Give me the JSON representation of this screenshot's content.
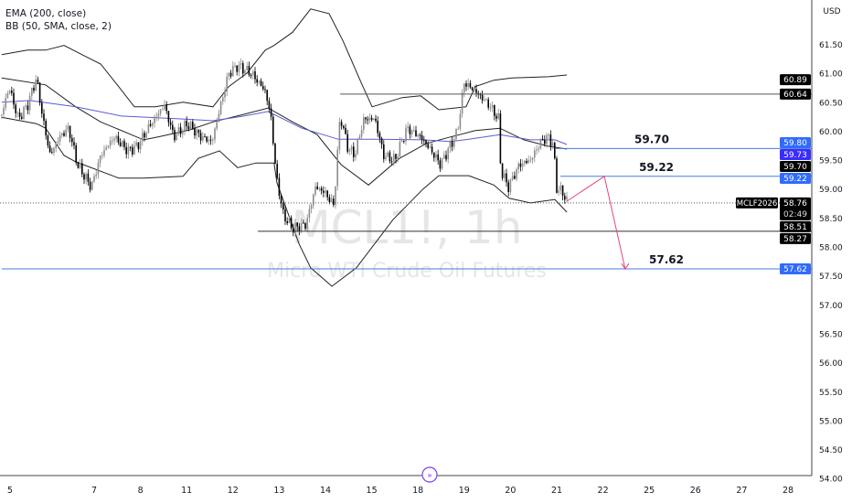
{
  "legend": {
    "ema": "EMA (200, close)",
    "bb": "BB (50, SMA, close, 2)"
  },
  "currency": "USD",
  "watermark": {
    "symbol": "MCL1!, 1h",
    "name": "Micro WTI Crude Oil Futures"
  },
  "scroll_button_icon": "scroll-to-realtime-icon",
  "chart_data": {
    "type": "candlestick",
    "symbol": "MCL1!",
    "interval": "1h",
    "x_ticks": [
      {
        "label": "5",
        "pos": 0.18
      },
      {
        "label": "7",
        "pos": 2
      },
      {
        "label": "8",
        "pos": 3
      },
      {
        "label": "11",
        "pos": 4
      },
      {
        "label": "12",
        "pos": 5
      },
      {
        "label": "13",
        "pos": 6
      },
      {
        "label": "14",
        "pos": 7
      },
      {
        "label": "15",
        "pos": 8
      },
      {
        "label": "18",
        "pos": 9
      },
      {
        "label": "19",
        "pos": 10
      },
      {
        "label": "20",
        "pos": 11
      },
      {
        "label": "21",
        "pos": 12
      },
      {
        "label": "22",
        "pos": 13
      },
      {
        "label": "25",
        "pos": 14
      },
      {
        "label": "26",
        "pos": 15
      },
      {
        "label": "27",
        "pos": 16
      },
      {
        "label": "28",
        "pos": 17
      }
    ],
    "y_ticks": [
      "61.50",
      "61.00",
      "60.50",
      "60.00",
      "59.50",
      "59.00",
      "58.50",
      "58.00",
      "57.50",
      "57.00",
      "56.50",
      "56.00",
      "55.50",
      "55.00",
      "54.50",
      "54.00"
    ],
    "ylim": [
      53.95,
      62.35
    ],
    "close_path": {
      "x": [
        0,
        0.16,
        0.36,
        0.56,
        0.75,
        0.91,
        1.05,
        1.25,
        1.45,
        1.64,
        1.94,
        2.14,
        2.43,
        2.73,
        2.93,
        3.23,
        3.52,
        3.72,
        4.02,
        4.31,
        4.55,
        4.71,
        4.91,
        5.1,
        5.4,
        5.7,
        5.83,
        5.93,
        6.09,
        6.29,
        6.58,
        6.78,
        6.98,
        7.18,
        7.32,
        7.47,
        7.63,
        7.83,
        8.07,
        8.26,
        8.5,
        8.76,
        9.06,
        9.29,
        9.49,
        9.69,
        9.85,
        10.0,
        10.24,
        10.54,
        10.74,
        10.79,
        10.95,
        11.19,
        11.43,
        11.66,
        11.82,
        11.94,
        11.98,
        12.12,
        12.22
      ],
      "close": [
        60.29,
        60.76,
        60.21,
        60.45,
        60.92,
        60.13,
        59.58,
        59.9,
        60.05,
        59.42,
        59.03,
        59.58,
        59.9,
        59.66,
        59.74,
        60.13,
        60.45,
        59.9,
        60.13,
        59.9,
        59.82,
        60.37,
        61.0,
        61.13,
        61.0,
        60.69,
        60.21,
        59.26,
        58.55,
        58.32,
        58.39,
        59.03,
        58.95,
        58.71,
        60.29,
        59.74,
        59.58,
        60.21,
        60.21,
        59.58,
        59.5,
        60.05,
        59.9,
        59.66,
        59.42,
        59.74,
        59.98,
        60.84,
        60.69,
        60.45,
        60.21,
        59.34,
        59.03,
        59.42,
        59.5,
        59.82,
        59.9,
        59.74,
        59.03,
        58.95,
        58.79
      ]
    },
    "indicators": {
      "bb_upper": [
        [
          0,
          61.32
        ],
        [
          0.56,
          61.4
        ],
        [
          0.95,
          61.4
        ],
        [
          1.35,
          61.48
        ],
        [
          1.74,
          61.32
        ],
        [
          2.14,
          61.16
        ],
        [
          2.53,
          60.77
        ],
        [
          2.87,
          60.42
        ],
        [
          3.32,
          60.42
        ],
        [
          3.92,
          60.5
        ],
        [
          4.57,
          60.42
        ],
        [
          4.91,
          60.77
        ],
        [
          5.3,
          61.0
        ],
        [
          5.7,
          61.4
        ],
        [
          5.89,
          61.48
        ],
        [
          6.29,
          61.71
        ],
        [
          6.68,
          62.11
        ],
        [
          7.08,
          62.03
        ],
        [
          7.38,
          61.56
        ],
        [
          7.77,
          60.84
        ],
        [
          8.01,
          60.42
        ],
        [
          8.66,
          60.58
        ],
        [
          9.06,
          60.61
        ],
        [
          9.45,
          60.37
        ],
        [
          10.04,
          60.42
        ],
        [
          10.24,
          60.77
        ],
        [
          10.64,
          60.88
        ],
        [
          11.03,
          60.92
        ],
        [
          11.82,
          60.94
        ],
        [
          12.22,
          60.97
        ]
      ],
      "bb_basis": [
        [
          0,
          60.92
        ],
        [
          0.95,
          60.8
        ],
        [
          1.6,
          60.42
        ],
        [
          2.14,
          60.16
        ],
        [
          3.07,
          59.85
        ],
        [
          3.38,
          59.9
        ],
        [
          4.06,
          60.02
        ],
        [
          4.57,
          60.16
        ],
        [
          5.24,
          60.29
        ],
        [
          5.76,
          60.4
        ],
        [
          6.29,
          60.16
        ],
        [
          6.82,
          59.94
        ],
        [
          7.34,
          59.42
        ],
        [
          7.93,
          59.07
        ],
        [
          8.6,
          59.53
        ],
        [
          9.19,
          59.79
        ],
        [
          9.71,
          59.9
        ],
        [
          10.24,
          60.01
        ],
        [
          10.77,
          60.05
        ],
        [
          11.29,
          59.85
        ],
        [
          11.82,
          59.74
        ],
        [
          12.22,
          59.69
        ]
      ],
      "bb_lower": [
        [
          0,
          60.24
        ],
        [
          0.75,
          60.13
        ],
        [
          0.95,
          60.05
        ],
        [
          1.35,
          59.58
        ],
        [
          1.6,
          59.47
        ],
        [
          2.53,
          59.19
        ],
        [
          3.07,
          59.19
        ],
        [
          3.92,
          59.22
        ],
        [
          4.25,
          59.53
        ],
        [
          4.71,
          59.66
        ],
        [
          5.1,
          59.37
        ],
        [
          5.5,
          59.45
        ],
        [
          5.89,
          59.45
        ],
        [
          5.95,
          59.11
        ],
        [
          6.43,
          58.05
        ],
        [
          6.68,
          57.64
        ],
        [
          7.14,
          57.32
        ],
        [
          7.67,
          57.64
        ],
        [
          8.46,
          58.47
        ],
        [
          9.11,
          59.0
        ],
        [
          9.45,
          59.23
        ],
        [
          10.1,
          59.23
        ],
        [
          10.64,
          59.07
        ],
        [
          10.97,
          58.84
        ],
        [
          11.43,
          58.76
        ],
        [
          11.96,
          58.82
        ],
        [
          12.22,
          58.6
        ]
      ],
      "ema200": [
        [
          0,
          60.5
        ],
        [
          0.61,
          60.53
        ],
        [
          1.6,
          60.42
        ],
        [
          2.59,
          60.26
        ],
        [
          3.92,
          60.21
        ],
        [
          4.57,
          60.18
        ],
        [
          5.24,
          60.26
        ],
        [
          5.76,
          60.34
        ],
        [
          6.29,
          60.13
        ],
        [
          6.49,
          60.05
        ],
        [
          7.28,
          59.86
        ],
        [
          8.13,
          59.86
        ],
        [
          9.11,
          59.85
        ],
        [
          9.71,
          59.82
        ],
        [
          10.1,
          59.86
        ],
        [
          10.77,
          59.94
        ],
        [
          11.43,
          59.85
        ],
        [
          11.96,
          59.85
        ],
        [
          12.22,
          59.77
        ]
      ]
    },
    "drawings": {
      "hlines": [
        {
          "price": 60.64,
          "from": 7.32,
          "color": "#555555"
        },
        {
          "price": 58.27,
          "from": 5.54,
          "color": "#333333"
        },
        {
          "price": 59.7,
          "from": 11.98,
          "color": "#4a7bd8",
          "label": "59.70"
        },
        {
          "price": 59.22,
          "from": 12.08,
          "color": "#4a7bd8",
          "label": "59.22"
        },
        {
          "price": 57.62,
          "from": 0,
          "color": "#4a7bd8",
          "label": "57.62"
        }
      ],
      "projection_path": [
        [
          12.22,
          58.79
        ],
        [
          13.03,
          59.22
        ],
        [
          13.48,
          57.62
        ]
      ],
      "projection_color": "#e0457b"
    },
    "last_price": {
      "price": 58.76,
      "symbol_tag": "MCLF2026",
      "label": "58.76",
      "countdown": "02:49"
    },
    "price_tags": [
      {
        "label": "60.89",
        "price": 60.89,
        "bg": "#000000"
      },
      {
        "label": "60.64",
        "price": 60.64,
        "bg": "#000000"
      },
      {
        "label": "59.80",
        "price": 59.8,
        "bg": "#2f6bff"
      },
      {
        "label": "59.73",
        "price": 59.73,
        "bg": "#3a2cff"
      },
      {
        "label": "59.70",
        "price": 59.7,
        "bg": "#000000"
      },
      {
        "label": "59.22",
        "price": 59.22,
        "bg": "#2f6bff"
      },
      {
        "label": "58.51",
        "price": 58.51,
        "bg": "#000000"
      },
      {
        "label": "58.27",
        "price": 58.27,
        "bg": "#000000"
      },
      {
        "label": "57.62",
        "price": 57.62,
        "bg": "#2f6bff"
      }
    ],
    "colors": {
      "up": "#8c8c8c",
      "down": "#000000",
      "ema": "#5b5bd6",
      "bb": "#222222"
    }
  }
}
